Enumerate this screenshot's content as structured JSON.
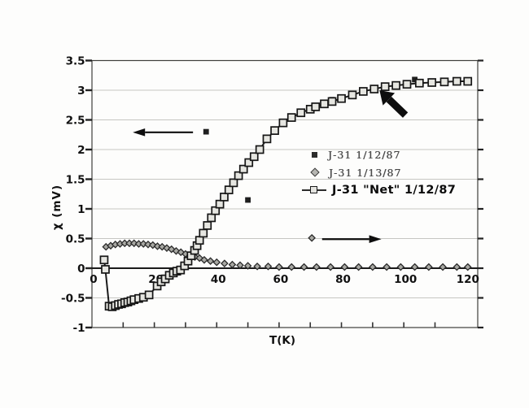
{
  "figure": {
    "page_background": "#fdfdfc",
    "frame_color": "#3f3f3c",
    "grid_color": "#c6c6c2",
    "axis_color": "#1a1a1a"
  },
  "chart_data": {
    "type": "line",
    "title": "",
    "xlabel": "T(K)",
    "ylabel": "χ (mV)",
    "xlim": [
      0,
      123.7
    ],
    "ylim": [
      -1,
      3.5
    ],
    "x_ticks": [
      0,
      20,
      40,
      60,
      80,
      100,
      120
    ],
    "x_tick_labels": [
      "0",
      "20",
      "40",
      "60",
      "80",
      "100",
      "120"
    ],
    "x_minor_ticks": [
      10,
      20,
      30,
      40,
      50,
      60,
      70,
      80,
      90,
      100,
      110
    ],
    "y_ticks": [
      -1,
      -0.5,
      0,
      0.5,
      1,
      1.5,
      2,
      2.5,
      3,
      3.5
    ],
    "y_tick_labels": [
      "-1",
      "-0.5",
      "0",
      "0.5",
      "1",
      "1.5",
      "2",
      "2.5",
      "3",
      "3.5"
    ],
    "gridlines_y": [
      -0.5,
      0.5,
      1,
      1.5,
      2,
      2.5,
      3
    ],
    "grid": "horizontal",
    "legend_position": "inside-right",
    "series": [
      {
        "name": "J-31 1/12/87",
        "marker": "filled-square",
        "line": false,
        "x": [
          50,
          77,
          103.5
        ],
        "y": [
          1.15,
          2.84,
          3.18
        ]
      },
      {
        "name": "J-31 1/13/87",
        "marker": "diamond",
        "line": false,
        "x": [
          4.5,
          6,
          7.5,
          9,
          10.5,
          12,
          13.5,
          15,
          16.5,
          18,
          19.5,
          21,
          22.5,
          24,
          25.5,
          27,
          28.5,
          30,
          31.5,
          33,
          34.5,
          36,
          38,
          40,
          42.5,
          45,
          47.5,
          50,
          53,
          56.5,
          60,
          64,
          68,
          72,
          76.5,
          81,
          85.5,
          90,
          94.5,
          99,
          103.5,
          108,
          112.5,
          117,
          120.5
        ],
        "y": [
          0.36,
          0.38,
          0.4,
          0.41,
          0.42,
          0.42,
          0.42,
          0.41,
          0.41,
          0.4,
          0.39,
          0.37,
          0.36,
          0.34,
          0.32,
          0.29,
          0.27,
          0.24,
          0.22,
          0.19,
          0.17,
          0.14,
          0.12,
          0.1,
          0.08,
          0.06,
          0.05,
          0.04,
          0.03,
          0.03,
          0.02,
          0.02,
          0.02,
          0.02,
          0.02,
          0.02,
          0.02,
          0.02,
          0.02,
          0.02,
          0.02,
          0.02,
          0.02,
          0.02,
          0.02
        ]
      },
      {
        "name": "J-31 \"Net\" 1/12/87",
        "marker": "open-square",
        "line": true,
        "x": [
          3.9,
          4.3,
          5.5,
          6.5,
          7.5,
          8.5,
          9.5,
          10.5,
          11.5,
          12.5,
          13.5,
          15,
          16.5,
          18.3,
          20.9,
          22.2,
          23.5,
          24.8,
          26.1,
          27.2,
          28.4,
          29.7,
          30.8,
          31.8,
          32.9,
          33.7,
          34.5,
          35.7,
          37,
          38.3,
          39.6,
          41,
          42.4,
          43.9,
          45.4,
          47,
          48.6,
          50.3,
          52,
          53.8,
          56.1,
          58.6,
          61.3,
          64,
          67,
          70,
          71.7,
          74.5,
          77,
          80,
          83.5,
          87,
          90.5,
          94,
          97.5,
          101,
          105,
          109,
          113,
          117,
          120.5
        ],
        "y": [
          0.14,
          -0.02,
          -0.64,
          -0.65,
          -0.63,
          -0.61,
          -0.6,
          -0.58,
          -0.57,
          -0.55,
          -0.53,
          -0.51,
          -0.49,
          -0.45,
          -0.3,
          -0.23,
          -0.18,
          -0.12,
          -0.08,
          -0.05,
          -0.03,
          0.04,
          0.12,
          0.21,
          0.3,
          0.38,
          0.47,
          0.59,
          0.72,
          0.85,
          0.97,
          1.08,
          1.2,
          1.32,
          1.44,
          1.56,
          1.67,
          1.78,
          1.88,
          2.0,
          2.18,
          2.32,
          2.45,
          2.54,
          2.62,
          2.68,
          2.72,
          2.77,
          2.81,
          2.86,
          2.92,
          2.98,
          3.02,
          3.06,
          3.08,
          3.1,
          3.12,
          3.13,
          3.14,
          3.15,
          3.15
        ]
      }
    ],
    "annotations": [
      {
        "id": "left-axis-arrow",
        "type": "arrow",
        "style": "thin",
        "tail": [
          32.4,
          2.29
        ],
        "tip": [
          13.1,
          2.29
        ],
        "marker": {
          "type": "filled-square",
          "at": [
            36.6,
            2.3
          ]
        }
      },
      {
        "id": "right-axis-arrow",
        "type": "arrow",
        "style": "thin",
        "tail": [
          73.8,
          0.49
        ],
        "tip": [
          92.8,
          0.49
        ],
        "marker": {
          "type": "diamond",
          "at": [
            70.5,
            0.51
          ]
        }
      },
      {
        "id": "highlight-arrow",
        "type": "arrow",
        "style": "bold",
        "tail": [
          100.5,
          2.58
        ],
        "tip": [
          92.2,
          3.0
        ]
      }
    ]
  },
  "legend": {
    "entries": [
      {
        "label": "J-31 1/12/87",
        "marker": "filled-square"
      },
      {
        "label": "J-31 1/13/87",
        "marker": "diamond"
      },
      {
        "label": "J-31 \"Net\" 1/12/87",
        "marker": "open-square-line"
      }
    ]
  }
}
